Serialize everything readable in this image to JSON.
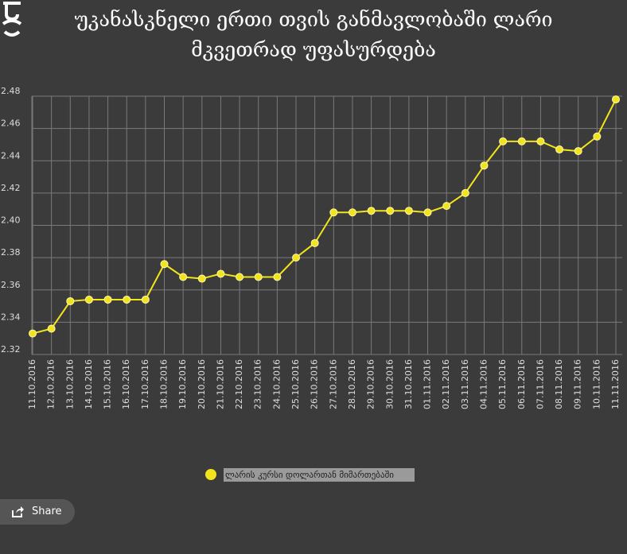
{
  "chart_data": {
    "type": "line",
    "title": "უკანასკნელი ერთი თვის განმავლობაში ლარი მკვეთრად უფასურდება",
    "categories": [
      "11.10.2016",
      "12.10.2016",
      "13.10.2016",
      "14.10.2016",
      "15.10.2016",
      "16.10.2016",
      "17.10.2016",
      "18.10.2016",
      "19.10.2016",
      "20.10.2016",
      "21.10.2016",
      "22.10.2016",
      "23.10.2016",
      "24.10.2016",
      "25.10.2016",
      "26.10.2016",
      "27.10.2016",
      "28.10.2016",
      "29.10.2016",
      "30.10.2016",
      "31.10.2016",
      "01.11.2016",
      "02.11.2016",
      "03.11.2016",
      "04.11.2016",
      "05.11.2016",
      "06.11.2016",
      "07.11.2016",
      "08.11.2016",
      "09.11.2016",
      "10.11.2016",
      "11.11.2016"
    ],
    "series": [
      {
        "name": "ლარის კურსი დოლართან მიმართებაში",
        "color": "#f2e41c",
        "values": [
          2.333,
          2.336,
          2.353,
          2.354,
          2.354,
          2.354,
          2.354,
          2.376,
          2.368,
          2.367,
          2.37,
          2.368,
          2.368,
          2.368,
          2.38,
          2.389,
          2.408,
          2.408,
          2.409,
          2.409,
          2.409,
          2.408,
          2.412,
          2.42,
          2.437,
          2.452,
          2.452,
          2.452,
          2.447,
          2.446,
          2.455,
          2.478
        ]
      }
    ],
    "ylim": [
      2.32,
      2.48
    ],
    "yticks": [
      2.32,
      2.34,
      2.36,
      2.38,
      {
        "value": 2.4,
        "label": "2.40"
      },
      2.42,
      2.44,
      2.46,
      2.48
    ],
    "grid": true,
    "legend": "bottom"
  },
  "ui": {
    "share": "Share"
  }
}
